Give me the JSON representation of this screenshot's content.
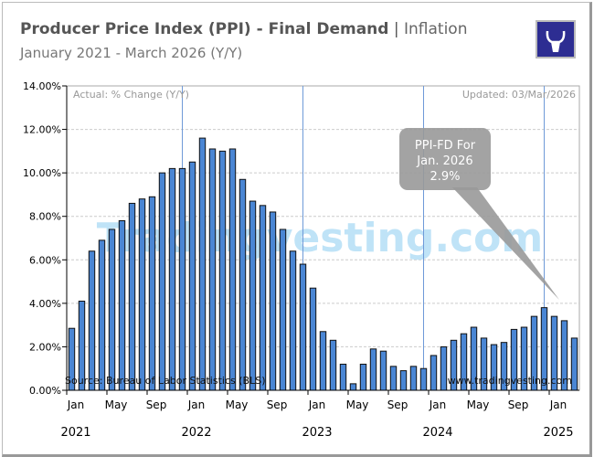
{
  "header": {
    "title_main": "Producer Price Index (PPI) - Final Demand",
    "title_sep": " | ",
    "title_category": "Inflation",
    "subtitle": "January 2021 - March 2026 (Y/Y)",
    "logo_icon": "bull-head-icon",
    "logo_color": "#2d2d92"
  },
  "chart_data": {
    "type": "bar",
    "ylim": [
      0,
      14
    ],
    "yticks": [
      "0.00%",
      "2.00%",
      "4.00%",
      "6.00%",
      "8.00%",
      "10.00%",
      "12.00%",
      "14.00%"
    ],
    "xtick_labels": [
      "Jan",
      "May",
      "Sep",
      "Jan",
      "May",
      "Sep",
      "Jan",
      "May",
      "Sep",
      "Jan",
      "May",
      "Sep",
      "Jan"
    ],
    "year_labels": [
      "2021",
      "2022",
      "2023",
      "2024",
      "2025"
    ],
    "categories": [
      "Jan 2021",
      "Feb 2021",
      "Mar 2021",
      "Apr 2021",
      "May 2021",
      "Jun 2021",
      "Jul 2021",
      "Aug 2021",
      "Sep 2021",
      "Oct 2021",
      "Nov 2021",
      "Dec 2021",
      "Jan 2022",
      "Feb 2022",
      "Mar 2022",
      "Apr 2022",
      "May 2022",
      "Jun 2022",
      "Jul 2022",
      "Aug 2022",
      "Sep 2022",
      "Oct 2022",
      "Nov 2022",
      "Dec 2022",
      "Jan 2023",
      "Feb 2023",
      "Mar 2023",
      "Apr 2023",
      "May 2023",
      "Jun 2023",
      "Jul 2023",
      "Aug 2023",
      "Sep 2023",
      "Oct 2023",
      "Nov 2023",
      "Dec 2023",
      "Jan 2024",
      "Feb 2024",
      "Mar 2024",
      "Apr 2024",
      "May 2024",
      "Jun 2024",
      "Jul 2024",
      "Aug 2024",
      "Sep 2024",
      "Oct 2024",
      "Nov 2024",
      "Dec 2024",
      "Jan 2025",
      "Feb 2025",
      "Mar 2025"
    ],
    "values": [
      2.85,
      4.1,
      6.4,
      6.9,
      7.4,
      7.8,
      8.6,
      8.8,
      8.9,
      10.0,
      10.2,
      10.2,
      10.5,
      11.6,
      11.1,
      11.0,
      11.1,
      9.7,
      8.7,
      8.5,
      8.2,
      7.4,
      6.4,
      5.8,
      4.7,
      2.7,
      2.3,
      1.2,
      0.3,
      1.2,
      1.9,
      1.8,
      1.1,
      0.9,
      1.1,
      1.0,
      1.6,
      2.0,
      2.3,
      2.6,
      2.9,
      2.4,
      2.1,
      2.2,
      2.8,
      2.9,
      3.4,
      3.8,
      3.4,
      3.2,
      2.4
    ],
    "bar_color": "#4a86d4",
    "grid": true,
    "top_left_note": "Actual: % Change (Y/Y)",
    "top_right_note": "Updated: 03/Mar/2026",
    "source": "Source: Bureau of Labor Statistics (BLS)",
    "website": "www.tradingvesting.com",
    "watermark": "Tradingvesting.com",
    "tooltip": {
      "line1": "PPI-FD For",
      "line2": "Jan. 2026",
      "line3": "2.9%"
    }
  }
}
